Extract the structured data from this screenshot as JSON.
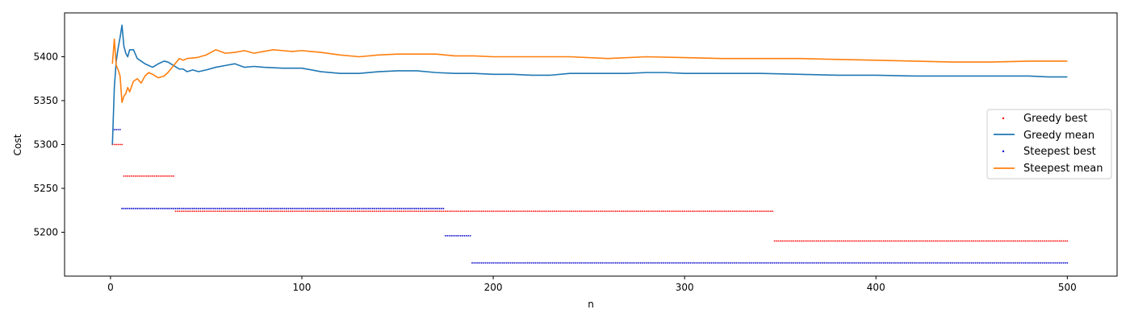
{
  "chart_data": {
    "type": "line",
    "title": "",
    "xlabel": "n",
    "ylabel": "Cost",
    "xlim": [
      -24,
      526
    ],
    "ylim": [
      5150,
      5450
    ],
    "x_ticks": [
      0,
      100,
      200,
      300,
      400,
      500
    ],
    "y_ticks": [
      5200,
      5250,
      5300,
      5350,
      5400
    ],
    "grid": false,
    "legend_position": "center-right",
    "series": [
      {
        "name": "Greedy best",
        "kind": "scatter",
        "color": "#ff0000",
        "segments": [
          {
            "x_start": 1,
            "x_end": 6,
            "y": 5300
          },
          {
            "x_start": 7,
            "x_end": 33,
            "y": 5264
          },
          {
            "x_start": 34,
            "x_end": 346,
            "y": 5224
          },
          {
            "x_start": 347,
            "x_end": 500,
            "y": 5190
          }
        ]
      },
      {
        "name": "Greedy mean",
        "kind": "line",
        "color": "#1f77b4",
        "x": [
          1,
          2,
          3,
          4,
          5,
          6,
          7,
          8,
          9,
          10,
          12,
          14,
          16,
          18,
          20,
          22,
          25,
          28,
          30,
          33,
          36,
          38,
          40,
          43,
          46,
          50,
          55,
          60,
          65,
          70,
          75,
          80,
          90,
          100,
          110,
          120,
          130,
          140,
          150,
          160,
          170,
          180,
          190,
          200,
          210,
          220,
          230,
          240,
          250,
          260,
          270,
          280,
          290,
          300,
          320,
          340,
          360,
          380,
          400,
          420,
          440,
          460,
          480,
          490,
          500
        ],
        "y": [
          5300,
          5365,
          5395,
          5410,
          5422,
          5436,
          5412,
          5404,
          5400,
          5408,
          5408,
          5398,
          5395,
          5392,
          5390,
          5388,
          5392,
          5395,
          5394,
          5390,
          5386,
          5386,
          5383,
          5385,
          5383,
          5385,
          5388,
          5390,
          5392,
          5388,
          5389,
          5388,
          5387,
          5387,
          5383,
          5381,
          5381,
          5383,
          5384,
          5384,
          5382,
          5381,
          5381,
          5380,
          5380,
          5379,
          5379,
          5381,
          5381,
          5381,
          5381,
          5382,
          5382,
          5381,
          5381,
          5381,
          5380,
          5379,
          5379,
          5378,
          5378,
          5378,
          5378,
          5377,
          5377
        ]
      },
      {
        "name": "Steepest best",
        "kind": "scatter",
        "color": "#0000cc",
        "segments": [
          {
            "x_start": 2,
            "x_end": 5,
            "y": 5317
          },
          {
            "x_start": 6,
            "x_end": 174,
            "y": 5227
          },
          {
            "x_start": 175,
            "x_end": 188,
            "y": 5196
          },
          {
            "x_start": 189,
            "x_end": 500,
            "y": 5165
          }
        ]
      },
      {
        "name": "Steepest mean",
        "kind": "line",
        "color": "#ff7f0e",
        "x": [
          1,
          2,
          3,
          4,
          5,
          6,
          7,
          8,
          9,
          10,
          12,
          14,
          16,
          18,
          20,
          22,
          25,
          28,
          30,
          33,
          36,
          38,
          40,
          45,
          50,
          55,
          60,
          65,
          70,
          75,
          80,
          85,
          90,
          95,
          100,
          110,
          120,
          130,
          140,
          150,
          160,
          170,
          180,
          190,
          200,
          220,
          240,
          260,
          280,
          300,
          320,
          340,
          360,
          380,
          400,
          420,
          440,
          460,
          480,
          500
        ],
        "y": [
          5392,
          5420,
          5390,
          5385,
          5378,
          5348,
          5355,
          5358,
          5365,
          5360,
          5372,
          5375,
          5370,
          5378,
          5382,
          5380,
          5376,
          5378,
          5382,
          5390,
          5398,
          5396,
          5398,
          5399,
          5402,
          5408,
          5404,
          5405,
          5407,
          5404,
          5406,
          5408,
          5407,
          5406,
          5407,
          5405,
          5402,
          5400,
          5402,
          5403,
          5403,
          5403,
          5401,
          5401,
          5400,
          5400,
          5400,
          5398,
          5400,
          5399,
          5398,
          5398,
          5398,
          5397,
          5396,
          5395,
          5394,
          5394,
          5395,
          5395
        ]
      }
    ]
  }
}
